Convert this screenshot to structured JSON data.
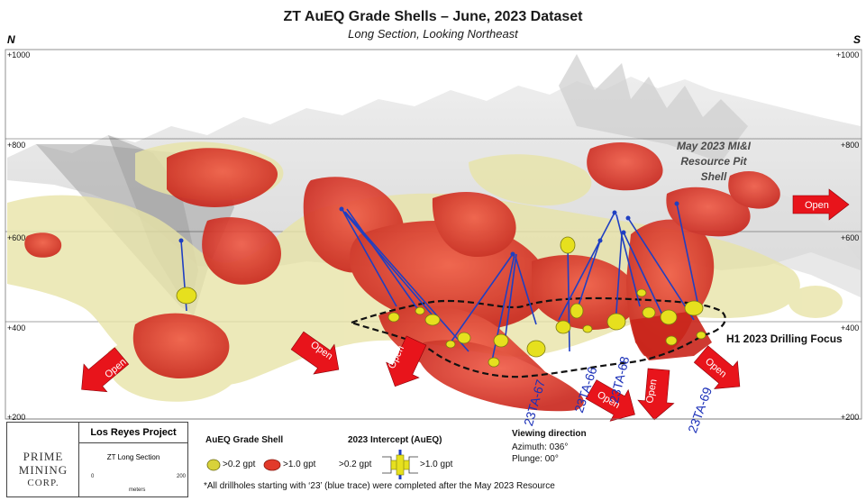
{
  "title": "ZT AuEQ Grade Shells – June, 2023 Dataset",
  "subtitle": "Long Section, Looking Northeast",
  "direction_left": "N",
  "direction_right": "S",
  "elevations": [
    "+1000",
    "+800",
    "+600",
    "+400",
    "+200"
  ],
  "pit_shell_label": [
    "May 2023 MI&I",
    "Resource Pit",
    "Shell"
  ],
  "focus_label": "H1 2023 Drilling Focus",
  "open_label": "Open",
  "drillhole_labels": [
    "23TA-67",
    "23TA-66",
    "23TA-68",
    "23TA-69"
  ],
  "logo": {
    "line1": "PRIME",
    "line2": "MINING",
    "line3": "CORP."
  },
  "project": {
    "title": "Los Reyes Project",
    "subtitle": "ZT Long Section",
    "scale_start": "0",
    "scale_end": "200",
    "scale_unit": "meters"
  },
  "legend": {
    "shell_title": "AuEQ Grade Shell",
    "low_label": ">0.2 gpt",
    "high_label": ">1.0 gpt",
    "intercept_title": "2023 Intercept (AuEQ)",
    "intercept_low": ">0.2 gpt",
    "intercept_high": ">1.0 gpt",
    "view_title": "Viewing direction",
    "azimuth": "Azimuth: 036°",
    "plunge": "Plunge: 00°",
    "footnote": "*All drillholes starting with ‘23’ (blue trace) were completed after the May 2023 Resource"
  },
  "colors": {
    "high_grade": "#e23a2a",
    "low_grade": "#e8e4a8",
    "drillhole": "#1f3fc2",
    "intercept": "#e6e01e",
    "arrow": "#e8141b",
    "pit": "#b9b9b9"
  }
}
